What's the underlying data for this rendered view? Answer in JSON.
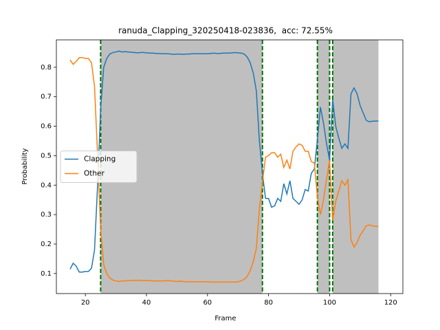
{
  "chart_data": {
    "type": "line",
    "title": "ranuda_Clapping_320250418-023836,  acc: 72.55%",
    "x_label": "Frame",
    "y_label": "Probability",
    "x": [
      15,
      16,
      17,
      18,
      19,
      20,
      21,
      22,
      23,
      24,
      25,
      26,
      27,
      28,
      29,
      30,
      31,
      32,
      33,
      34,
      35,
      36,
      37,
      38,
      39,
      40,
      41,
      42,
      43,
      44,
      45,
      46,
      47,
      48,
      49,
      50,
      51,
      52,
      53,
      54,
      55,
      56,
      57,
      58,
      59,
      60,
      61,
      62,
      63,
      64,
      65,
      66,
      67,
      68,
      69,
      70,
      71,
      72,
      73,
      74,
      75,
      76,
      77,
      78,
      79,
      80,
      81,
      82,
      83,
      84,
      85,
      86,
      87,
      88,
      89,
      90,
      91,
      92,
      93,
      94,
      95,
      96,
      97,
      98,
      99,
      100,
      101,
      102,
      103,
      104,
      105,
      106,
      107,
      108,
      109,
      110,
      111,
      112,
      113,
      114,
      115,
      116
    ],
    "series": [
      {
        "name": "Clapping",
        "color": "#1f77b4",
        "values": [
          0.115,
          0.135,
          0.125,
          0.105,
          0.105,
          0.107,
          0.107,
          0.118,
          0.18,
          0.4,
          0.66,
          0.8,
          0.83,
          0.845,
          0.85,
          0.852,
          0.855,
          0.852,
          0.853,
          0.852,
          0.851,
          0.85,
          0.849,
          0.85,
          0.85,
          0.849,
          0.848,
          0.848,
          0.847,
          0.847,
          0.846,
          0.846,
          0.846,
          0.845,
          0.844,
          0.845,
          0.845,
          0.844,
          0.845,
          0.845,
          0.846,
          0.846,
          0.846,
          0.846,
          0.846,
          0.846,
          0.847,
          0.848,
          0.847,
          0.847,
          0.848,
          0.848,
          0.848,
          0.849,
          0.85,
          0.849,
          0.848,
          0.845,
          0.835,
          0.815,
          0.78,
          0.72,
          0.55,
          0.44,
          0.355,
          0.355,
          0.325,
          0.33,
          0.355,
          0.345,
          0.405,
          0.37,
          0.415,
          0.355,
          0.345,
          0.335,
          0.35,
          0.385,
          0.38,
          0.44,
          0.455,
          0.555,
          0.665,
          0.61,
          0.54,
          0.485,
          0.69,
          0.6,
          0.56,
          0.525,
          0.54,
          0.525,
          0.71,
          0.73,
          0.71,
          0.67,
          0.645,
          0.62,
          0.615,
          0.617,
          0.617,
          0.618
        ]
      },
      {
        "name": "Other",
        "color": "#ff7f0e",
        "values": [
          0.825,
          0.81,
          0.82,
          0.833,
          0.833,
          0.83,
          0.83,
          0.815,
          0.735,
          0.5,
          0.25,
          0.13,
          0.1,
          0.085,
          0.078,
          0.075,
          0.073,
          0.075,
          0.075,
          0.076,
          0.076,
          0.077,
          0.077,
          0.077,
          0.076,
          0.076,
          0.076,
          0.075,
          0.075,
          0.075,
          0.075,
          0.075,
          0.076,
          0.075,
          0.074,
          0.073,
          0.074,
          0.073,
          0.072,
          0.072,
          0.072,
          0.072,
          0.072,
          0.072,
          0.072,
          0.072,
          0.071,
          0.071,
          0.071,
          0.071,
          0.071,
          0.071,
          0.071,
          0.071,
          0.071,
          0.072,
          0.075,
          0.08,
          0.09,
          0.11,
          0.14,
          0.185,
          0.32,
          0.41,
          0.495,
          0.5,
          0.51,
          0.51,
          0.495,
          0.505,
          0.46,
          0.485,
          0.455,
          0.515,
          0.53,
          0.54,
          0.535,
          0.515,
          0.515,
          0.48,
          0.475,
          0.36,
          0.3,
          0.35,
          0.42,
          0.485,
          0.28,
          0.345,
          0.38,
          0.415,
          0.4,
          0.418,
          0.215,
          0.19,
          0.205,
          0.23,
          0.245,
          0.262,
          0.265,
          0.262,
          0.26,
          0.26
        ]
      }
    ],
    "shaded_regions": [
      [
        25,
        78
      ],
      [
        96,
        100
      ],
      [
        101,
        116
      ]
    ],
    "shade_color": "#bfbfbf",
    "vlines": [
      25,
      78,
      96,
      100,
      101
    ],
    "vline_color": "#007000",
    "xlim": [
      10.5,
      124
    ],
    "xticks": [
      20,
      40,
      60,
      80,
      100,
      120
    ],
    "ylim": [
      0.032,
      0.893
    ],
    "yticks": [
      0.1,
      0.2,
      0.3,
      0.4,
      0.5,
      0.6,
      0.7,
      0.8
    ],
    "legend": "center left"
  }
}
